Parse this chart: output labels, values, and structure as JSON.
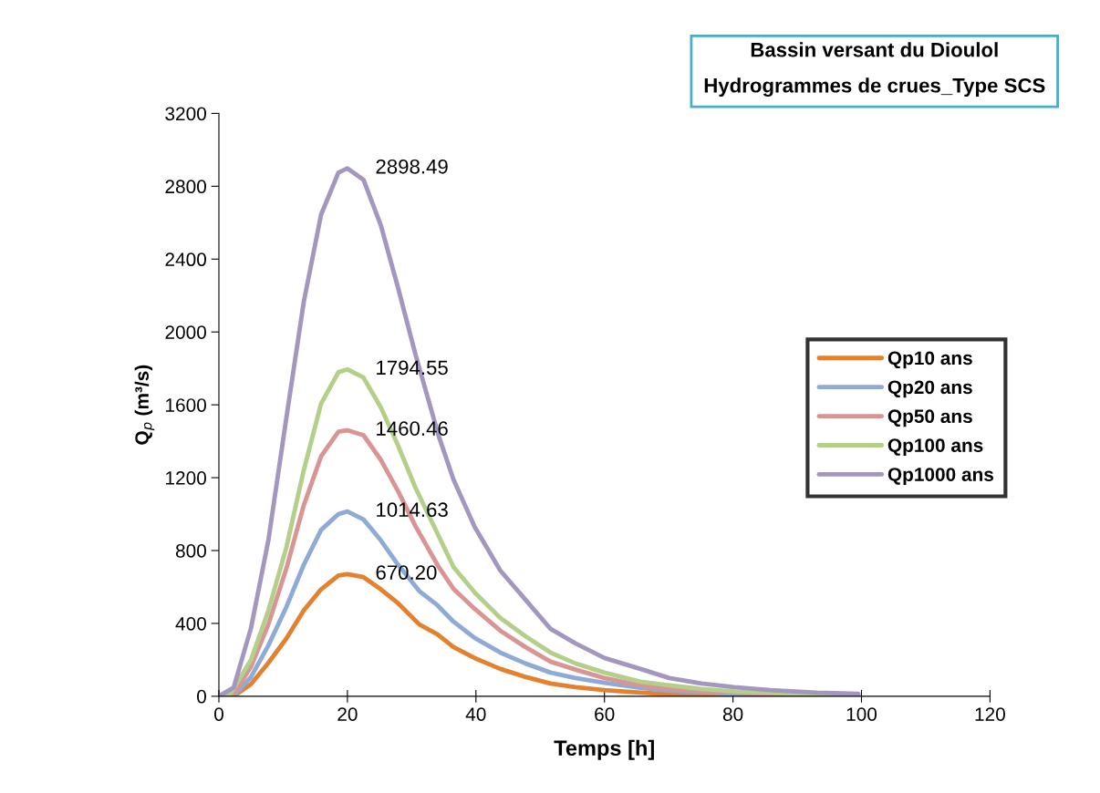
{
  "chart_data": {
    "type": "line",
    "title": "Bassin versant du Dioulol",
    "subtitle": "Hydrogrammes de crues_Type SCS",
    "xlabel": "Temps [h]",
    "ylabel": "Q$_{p}$ (m³/s)",
    "xlim": [
      0,
      120
    ],
    "xticks": [
      0,
      20,
      40,
      60,
      80,
      100,
      120
    ],
    "ylim": [
      0,
      3200
    ],
    "yticks": [
      0,
      400,
      800,
      1200,
      1600,
      2000,
      2400,
      2800,
      3200
    ],
    "grid": false,
    "legend": "right",
    "marker": "none",
    "line_style": "solid",
    "series": [
      {
        "name": "Qp10 ans",
        "color": "#e4812f",
        "x": [
          0,
          2.3,
          5,
          7.7,
          10.5,
          13.2,
          15.9,
          18.6,
          20,
          22.5,
          25.2,
          27.9,
          31.2,
          34,
          36.5,
          39.8,
          43.8,
          47.7,
          51.6,
          55.5,
          60,
          65.6,
          70.1,
          80.2,
          90.3,
          99.5
        ],
        "values": [
          0,
          0,
          67,
          183,
          317,
          471,
          587,
          663,
          670.2,
          654,
          587,
          510,
          394,
          340,
          270,
          210,
          150,
          106,
          70,
          50,
          34,
          20,
          12,
          6,
          2,
          0
        ],
        "value_labels": [
          null,
          null,
          null,
          null,
          null,
          null,
          null,
          null,
          "670.20",
          null,
          null,
          null,
          null,
          null,
          null,
          null,
          null,
          null,
          null,
          null,
          null,
          null,
          null,
          null,
          null,
          null
        ]
      },
      {
        "name": "Qp20 ans",
        "color": "#8eaad6",
        "x": [
          0,
          2.3,
          5,
          7.7,
          10.5,
          13.2,
          15.9,
          18.6,
          20,
          22.5,
          25.2,
          27.9,
          31.2,
          34,
          36.5,
          39.8,
          43.8,
          47.7,
          51.6,
          55.5,
          60,
          65.6,
          70.1,
          80.2,
          90.3,
          99.5
        ],
        "values": [
          0,
          0,
          106,
          279,
          490,
          721,
          913,
          1000,
          1014.63,
          971,
          856,
          721,
          577,
          500,
          410,
          320,
          240,
          180,
          130,
          100,
          74,
          46,
          30,
          14,
          8,
          6
        ],
        "value_labels": [
          null,
          null,
          null,
          null,
          null,
          null,
          null,
          null,
          "1014.63",
          null,
          null,
          null,
          null,
          null,
          null,
          null,
          null,
          null,
          null,
          null,
          null,
          null,
          null,
          null,
          null,
          null
        ]
      },
      {
        "name": "Qp50 ans",
        "color": "#d99594",
        "x": [
          0,
          2.3,
          5,
          7.7,
          10.5,
          13.2,
          15.9,
          18.6,
          20,
          22.5,
          25.2,
          27.9,
          30.6,
          34.2,
          36.5,
          39.8,
          43.8,
          47.7,
          51.6,
          55.5,
          60,
          65.6,
          70.1,
          80.2,
          90.3,
          99.5
        ],
        "values": [
          0,
          10,
          163,
          394,
          702,
          1048,
          1317,
          1452,
          1460.46,
          1433,
          1298,
          1125,
          933,
          710,
          590,
          480,
          360,
          270,
          190,
          146,
          100,
          60,
          40,
          20,
          12,
          8
        ],
        "value_labels": [
          null,
          null,
          null,
          null,
          null,
          null,
          null,
          null,
          "1460.46",
          null,
          null,
          null,
          null,
          null,
          null,
          null,
          null,
          null,
          null,
          null,
          null,
          null,
          null,
          null,
          null,
          null
        ]
      },
      {
        "name": "Qp100 ans",
        "color": "#b3cf8a",
        "x": [
          0,
          1.7,
          5,
          7.7,
          10.5,
          13.2,
          15.9,
          18.6,
          20,
          22.5,
          25.2,
          27.9,
          30.6,
          34.2,
          36.5,
          39.8,
          43.8,
          47.7,
          51.6,
          55.5,
          60,
          65.6,
          70.1,
          75.1,
          80.2,
          90.3,
          99.5
        ],
        "values": [
          0,
          10,
          200,
          470,
          817,
          1240,
          1606,
          1779,
          1794.55,
          1750,
          1586,
          1375,
          1144,
          880,
          710,
          570,
          430,
          330,
          240,
          180,
          130,
          80,
          60,
          40,
          26,
          14,
          10
        ],
        "value_labels": [
          null,
          null,
          null,
          null,
          null,
          null,
          null,
          null,
          "1794.55",
          null,
          null,
          null,
          null,
          null,
          null,
          null,
          null,
          null,
          null,
          null,
          null,
          null,
          null,
          null,
          null,
          null,
          null
        ]
      },
      {
        "name": "Qp1000 ans",
        "color": "#a497bf",
        "x": [
          0,
          2.3,
          5,
          7.7,
          10.5,
          13.2,
          15.9,
          18.6,
          20,
          22.5,
          25.2,
          27.9,
          30.6,
          34.2,
          36.5,
          39.8,
          43.8,
          47.7,
          51.6,
          55.5,
          60,
          65.6,
          70.1,
          75.1,
          80.2,
          85.8,
          93,
          99.5
        ],
        "values": [
          0,
          48,
          375,
          856,
          1529,
          2163,
          2644,
          2875,
          2898.49,
          2836,
          2586,
          2240,
          1875,
          1430,
          1190,
          930,
          690,
          530,
          370,
          290,
          210,
          150,
          100,
          70,
          50,
          34,
          20,
          14
        ],
        "value_labels": [
          null,
          null,
          null,
          null,
          null,
          null,
          null,
          null,
          "2898.49",
          null,
          null,
          null,
          null,
          null,
          null,
          null,
          null,
          null,
          null,
          null,
          null,
          null,
          null,
          null,
          null,
          null,
          null,
          null
        ]
      }
    ]
  }
}
